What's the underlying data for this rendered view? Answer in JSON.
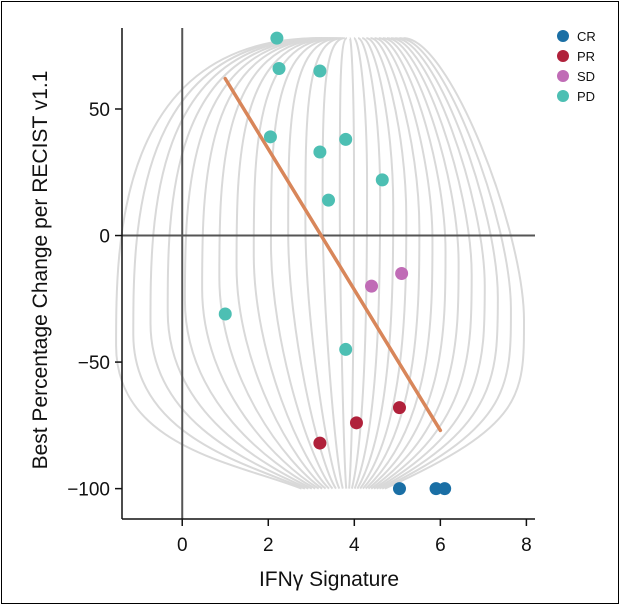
{
  "chart_data": {
    "type": "scatter",
    "title": "",
    "xlabel": "IFNγ Signature",
    "ylabel": "Best Percentage Change per RECIST v1.1",
    "xlim": [
      -1.4,
      8.2
    ],
    "ylim": [
      -112,
      82
    ],
    "x_ticks": [
      0,
      2,
      4,
      6,
      8
    ],
    "y_ticks": [
      -100,
      -50,
      0,
      50
    ],
    "x_tick_labels": [
      "0",
      "2",
      "4",
      "6",
      "8"
    ],
    "y_tick_labels": [
      "−100",
      "−50",
      "0",
      "50"
    ],
    "legend_position": "top-right",
    "grid": false,
    "reference_lines": {
      "x": 0,
      "y": 0
    },
    "contour_background": true,
    "series": [
      {
        "name": "CR",
        "color": "#1a6fa5",
        "points": [
          {
            "x": 5.05,
            "y": -100
          },
          {
            "x": 5.9,
            "y": -100
          },
          {
            "x": 6.1,
            "y": -100
          }
        ]
      },
      {
        "name": "PR",
        "color": "#b0213b",
        "points": [
          {
            "x": 3.2,
            "y": -82
          },
          {
            "x": 4.05,
            "y": -74
          },
          {
            "x": 5.05,
            "y": -68
          }
        ]
      },
      {
        "name": "SD",
        "color": "#c06cb6",
        "points": [
          {
            "x": 4.4,
            "y": -20
          },
          {
            "x": 5.1,
            "y": -15
          }
        ]
      },
      {
        "name": "PD",
        "color": "#4dbfb3",
        "points": [
          {
            "x": 2.2,
            "y": 78
          },
          {
            "x": 2.25,
            "y": 66
          },
          {
            "x": 3.2,
            "y": 65
          },
          {
            "x": 2.05,
            "y": 39
          },
          {
            "x": 3.8,
            "y": 38
          },
          {
            "x": 3.2,
            "y": 33
          },
          {
            "x": 4.65,
            "y": 22
          },
          {
            "x": 3.4,
            "y": 14
          },
          {
            "x": 1.0,
            "y": -31
          },
          {
            "x": 3.8,
            "y": -45
          }
        ]
      }
    ],
    "trend_line": {
      "color": "#d8865a",
      "start": {
        "x": 1.0,
        "y": 62
      },
      "end": {
        "x": 6.0,
        "y": -77
      }
    }
  }
}
